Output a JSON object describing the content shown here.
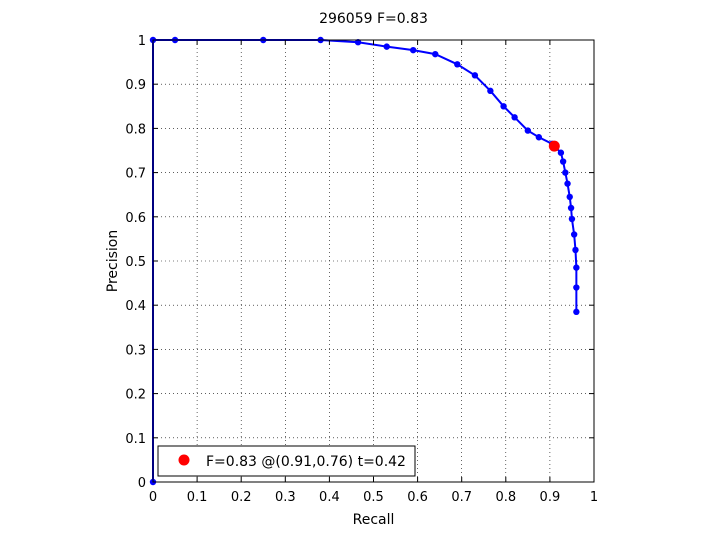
{
  "chart_data": {
    "type": "line",
    "title": "296059 F=0.83",
    "xlabel": "Recall",
    "ylabel": "Precision",
    "xlim": [
      0,
      1
    ],
    "ylim": [
      0,
      1
    ],
    "xticks": [
      0,
      0.1,
      0.2,
      0.3,
      0.4,
      0.5,
      0.6,
      0.7,
      0.8,
      0.9,
      1
    ],
    "yticks": [
      0,
      0.1,
      0.2,
      0.3,
      0.4,
      0.5,
      0.6,
      0.7,
      0.8,
      0.9,
      1
    ],
    "xtick_labels": [
      "0",
      "0.1",
      "0.2",
      "0.3",
      "0.4",
      "0.5",
      "0.6",
      "0.7",
      "0.8",
      "0.9",
      "1"
    ],
    "ytick_labels": [
      "0",
      "0.1",
      "0.2",
      "0.3",
      "0.4",
      "0.5",
      "0.6",
      "0.7",
      "0.8",
      "0.9",
      "1"
    ],
    "grid": true,
    "series": [
      {
        "color": "#0000ff",
        "x": [
          0,
          0,
          0.05,
          0.25,
          0.38,
          0.465,
          0.53,
          0.59,
          0.64,
          0.69,
          0.73,
          0.765,
          0.795,
          0.82,
          0.85,
          0.875,
          0.905,
          0.925,
          0.93,
          0.935,
          0.94,
          0.945,
          0.948,
          0.95,
          0.955,
          0.958,
          0.96,
          0.96,
          0.96
        ],
        "y": [
          0,
          1,
          1,
          1,
          1,
          0.995,
          0.985,
          0.977,
          0.968,
          0.945,
          0.92,
          0.885,
          0.85,
          0.825,
          0.795,
          0.78,
          0.765,
          0.745,
          0.725,
          0.7,
          0.675,
          0.645,
          0.62,
          0.595,
          0.56,
          0.525,
          0.485,
          0.44,
          0.385
        ]
      }
    ],
    "highlight_point": {
      "x": 0.91,
      "y": 0.76,
      "color": "#ff0000"
    },
    "legend": {
      "label": "F=0.83 @(0.91,0.76) t=0.42",
      "placement": "bottom-left"
    }
  }
}
